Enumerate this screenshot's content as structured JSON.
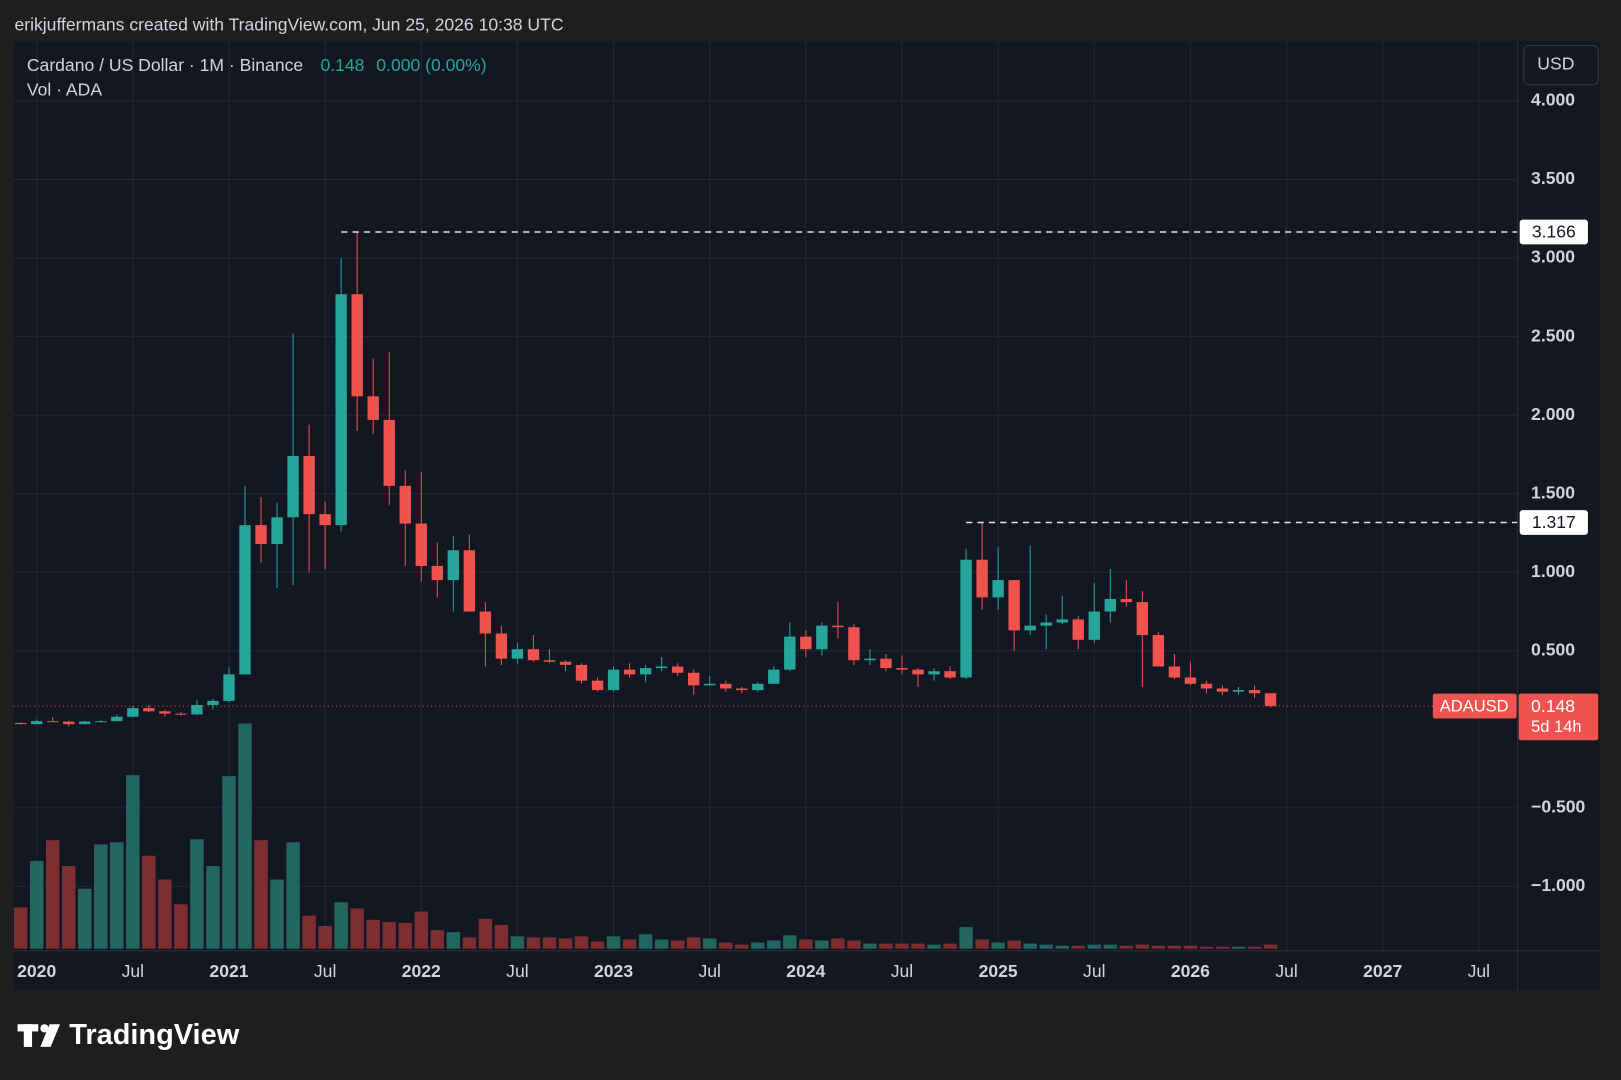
{
  "header": "erikjuffermans created with TradingView.com, Jun 25, 2026 10:38 UTC",
  "chart_data": {
    "type": "candlestick",
    "title": "Cardano / US Dollar · 1M · Binance",
    "change": "0.000 (0.00%)",
    "volume_label": "Vol · ADA",
    "currency": "USD",
    "symbol": "ADAUSD",
    "countdown": "5d 14h",
    "categories": [
      "2019-12",
      "2020-01",
      "2020-02",
      "2020-03",
      "2020-04",
      "2020-05",
      "2020-06",
      "2020-07",
      "2020-08",
      "2020-09",
      "2020-10",
      "2020-11",
      "2020-12",
      "2021-01",
      "2021-02",
      "2021-03",
      "2021-04",
      "2021-05",
      "2021-06",
      "2021-07",
      "2021-08",
      "2021-09",
      "2021-10",
      "2021-11",
      "2021-12",
      "2022-01",
      "2022-02",
      "2022-03",
      "2022-04",
      "2022-05",
      "2022-06",
      "2022-07",
      "2022-08",
      "2022-09",
      "2022-10",
      "2022-11",
      "2022-12",
      "2023-01",
      "2023-02",
      "2023-03",
      "2023-04",
      "2023-05",
      "2023-06",
      "2023-07",
      "2023-08",
      "2023-09",
      "2023-10",
      "2023-11",
      "2023-12",
      "2024-01",
      "2024-02",
      "2024-03",
      "2024-04",
      "2024-05",
      "2024-06",
      "2024-07",
      "2024-08",
      "2024-09",
      "2024-10",
      "2024-11",
      "2024-12",
      "2025-01",
      "2025-02",
      "2025-03",
      "2025-04",
      "2025-05",
      "2025-06",
      "2025-07",
      "2025-08",
      "2025-09",
      "2025-10",
      "2025-11",
      "2025-12",
      "2026-01",
      "2026-02",
      "2026-03",
      "2026-04",
      "2026-05",
      "2026-06"
    ],
    "open": [
      0.0405,
      0.033,
      0.052,
      0.049,
      0.033,
      0.05,
      0.052,
      0.08,
      0.135,
      0.115,
      0.1,
      0.095,
      0.155,
      0.181,
      0.35,
      1.3,
      1.18,
      1.35,
      1.74,
      1.37,
      1.3,
      2.77,
      2.12,
      1.97,
      1.55,
      1.31,
      1.04,
      0.95,
      1.14,
      0.75,
      0.61,
      0.45,
      0.51,
      0.44,
      0.43,
      0.41,
      0.31,
      0.25,
      0.38,
      0.35,
      0.39,
      0.4,
      0.36,
      0.28,
      0.29,
      0.26,
      0.25,
      0.29,
      0.38,
      0.59,
      0.51,
      0.66,
      0.65,
      0.44,
      0.45,
      0.39,
      0.38,
      0.35,
      0.37,
      0.33,
      1.08,
      0.84,
      0.95,
      0.63,
      0.66,
      0.68,
      0.7,
      0.57,
      0.75,
      0.83,
      0.81,
      0.6,
      0.4,
      0.33,
      0.29,
      0.26,
      0.24,
      0.25,
      0.23
    ],
    "high": [
      0.0445,
      0.063,
      0.078,
      0.054,
      0.055,
      0.058,
      0.094,
      0.15,
      0.155,
      0.125,
      0.11,
      0.185,
      0.195,
      0.395,
      1.55,
      1.48,
      1.44,
      2.52,
      1.94,
      1.45,
      3.0,
      3.166,
      2.36,
      2.4,
      1.65,
      1.64,
      1.19,
      1.23,
      1.24,
      0.81,
      0.66,
      0.55,
      0.6,
      0.51,
      0.44,
      0.42,
      0.33,
      0.4,
      0.42,
      0.41,
      0.46,
      0.42,
      0.38,
      0.34,
      0.31,
      0.27,
      0.3,
      0.4,
      0.68,
      0.63,
      0.68,
      0.81,
      0.67,
      0.51,
      0.48,
      0.47,
      0.39,
      0.39,
      0.4,
      1.15,
      1.317,
      1.16,
      0.95,
      1.17,
      0.73,
      0.85,
      0.72,
      0.93,
      1.02,
      0.95,
      0.88,
      0.62,
      0.48,
      0.43,
      0.31,
      0.28,
      0.27,
      0.28,
      0.23
    ],
    "low": [
      0.0315,
      0.033,
      0.047,
      0.0177,
      0.03,
      0.042,
      0.05,
      0.077,
      0.11,
      0.08,
      0.088,
      0.09,
      0.126,
      0.17,
      0.35,
      1.06,
      0.9,
      0.92,
      1.0,
      1.02,
      1.26,
      1.9,
      1.88,
      1.43,
      1.04,
      0.94,
      0.84,
      0.75,
      0.75,
      0.4,
      0.41,
      0.42,
      0.43,
      0.42,
      0.37,
      0.29,
      0.24,
      0.24,
      0.33,
      0.3,
      0.37,
      0.34,
      0.22,
      0.28,
      0.24,
      0.23,
      0.24,
      0.29,
      0.37,
      0.46,
      0.47,
      0.58,
      0.41,
      0.41,
      0.37,
      0.35,
      0.27,
      0.31,
      0.32,
      0.32,
      0.76,
      0.76,
      0.5,
      0.6,
      0.51,
      0.67,
      0.51,
      0.55,
      0.68,
      0.78,
      0.27,
      0.4,
      0.32,
      0.28,
      0.23,
      0.22,
      0.22,
      0.2,
      0.14
    ],
    "close": [
      0.033,
      0.052,
      0.049,
      0.033,
      0.05,
      0.052,
      0.08,
      0.135,
      0.115,
      0.1,
      0.095,
      0.155,
      0.181,
      0.35,
      1.3,
      1.18,
      1.35,
      1.74,
      1.37,
      1.3,
      2.77,
      2.12,
      1.97,
      1.55,
      1.31,
      1.04,
      0.95,
      1.14,
      0.75,
      0.61,
      0.45,
      0.51,
      0.44,
      0.43,
      0.41,
      0.31,
      0.25,
      0.38,
      0.35,
      0.39,
      0.4,
      0.36,
      0.28,
      0.29,
      0.26,
      0.25,
      0.29,
      0.38,
      0.59,
      0.51,
      0.66,
      0.65,
      0.44,
      0.45,
      0.39,
      0.38,
      0.35,
      0.37,
      0.33,
      1.08,
      0.84,
      0.95,
      0.63,
      0.66,
      0.68,
      0.7,
      0.57,
      0.75,
      0.83,
      0.81,
      0.6,
      0.4,
      0.33,
      0.29,
      0.26,
      0.24,
      0.25,
      0.23,
      0.148
    ],
    "volume": [
      4000000000.0,
      8500000000.0,
      10500000000.0,
      8000000000.0,
      5800000000.0,
      10100000000.0,
      10300000000.0,
      16800000000.0,
      9000000000.0,
      6700000000.0,
      4300000000.0,
      10600000000.0,
      8000000000.0,
      16700000000.0,
      21800000000.0,
      10500000000.0,
      6700000000.0,
      10300000000.0,
      3200000000.0,
      2200000000.0,
      4500000000.0,
      3900000000.0,
      2800000000.0,
      2600000000.0,
      2500000000.0,
      3600000000.0,
      1800000000.0,
      1600000000.0,
      1100000000.0,
      2900000000.0,
      2300000000.0,
      1200000000.0,
      1100000000.0,
      1100000000.0,
      1000000000.0,
      1200000000.0,
      700000000.0,
      1200000000.0,
      900000000.0,
      1400000000.0,
      900000000.0,
      800000000.0,
      1100000000.0,
      1000000000.0,
      600000000.0,
      400000000.0,
      600000000.0,
      800000000.0,
      1300000000.0,
      900000000.0,
      800000000.0,
      1000000000.0,
      800000000.0,
      500000000.0,
      500000000.0,
      500000000.0,
      500000000.0,
      400000000.0,
      500000000.0,
      2100000000.0,
      900000000.0,
      600000000.0,
      800000000.0,
      500000000.0,
      400000000.0,
      300000000.0,
      300000000.0,
      400000000.0,
      400000000.0,
      300000000.0,
      400000000.0,
      300000000.0,
      300000000.0,
      300000000.0,
      200000000.0,
      200000000.0,
      200000000.0,
      200000000.0,
      400000000.0
    ],
    "up_color": "#26a69a",
    "down_color": "#ef5350",
    "volume_up_color": "#22665f",
    "volume_down_color": "#7e2d30",
    "ylim": [
      -1.41,
      4.38
    ],
    "yticks": [
      {
        "value": -1,
        "label": "−1.000"
      },
      {
        "value": -0.5,
        "label": "−0.500"
      },
      {
        "value": 0.5,
        "label": "0.500"
      },
      {
        "value": 1,
        "label": "1.000"
      },
      {
        "value": 1.5,
        "label": "1.500"
      },
      {
        "value": 2,
        "label": "2.000"
      },
      {
        "value": 2.5,
        "label": "2.500"
      },
      {
        "value": 3,
        "label": "3.000"
      },
      {
        "value": 3.5,
        "label": "3.500"
      },
      {
        "value": 4,
        "label": "4.000"
      }
    ],
    "xlim": [
      "2019-12",
      "2027-10"
    ],
    "xticks": [
      {
        "value": "2020-01",
        "label": "2020"
      },
      {
        "value": "2020-07",
        "label": "Jul"
      },
      {
        "value": "2021-01",
        "label": "2021"
      },
      {
        "value": "2021-07",
        "label": "Jul"
      },
      {
        "value": "2022-01",
        "label": "2022"
      },
      {
        "value": "2022-07",
        "label": "Jul"
      },
      {
        "value": "2023-01",
        "label": "2023"
      },
      {
        "value": "2023-07",
        "label": "Jul"
      },
      {
        "value": "2024-01",
        "label": "2024"
      },
      {
        "value": "2024-07",
        "label": "Jul"
      },
      {
        "value": "2025-01",
        "label": "2025"
      },
      {
        "value": "2025-07",
        "label": "Jul"
      },
      {
        "value": "2026-01",
        "label": "2026"
      },
      {
        "value": "2026-07",
        "label": "Jul"
      },
      {
        "value": "2027-01",
        "label": "2027"
      },
      {
        "value": "2027-07",
        "label": "Jul"
      }
    ],
    "vlim": [
      0,
      25000000000.0
    ],
    "levels": [
      {
        "value": 3.166,
        "from": "2021-09"
      },
      {
        "value": 1.317,
        "from": "2024-12"
      }
    ],
    "grid": true
  },
  "footer": {
    "brand": "TradingView"
  }
}
